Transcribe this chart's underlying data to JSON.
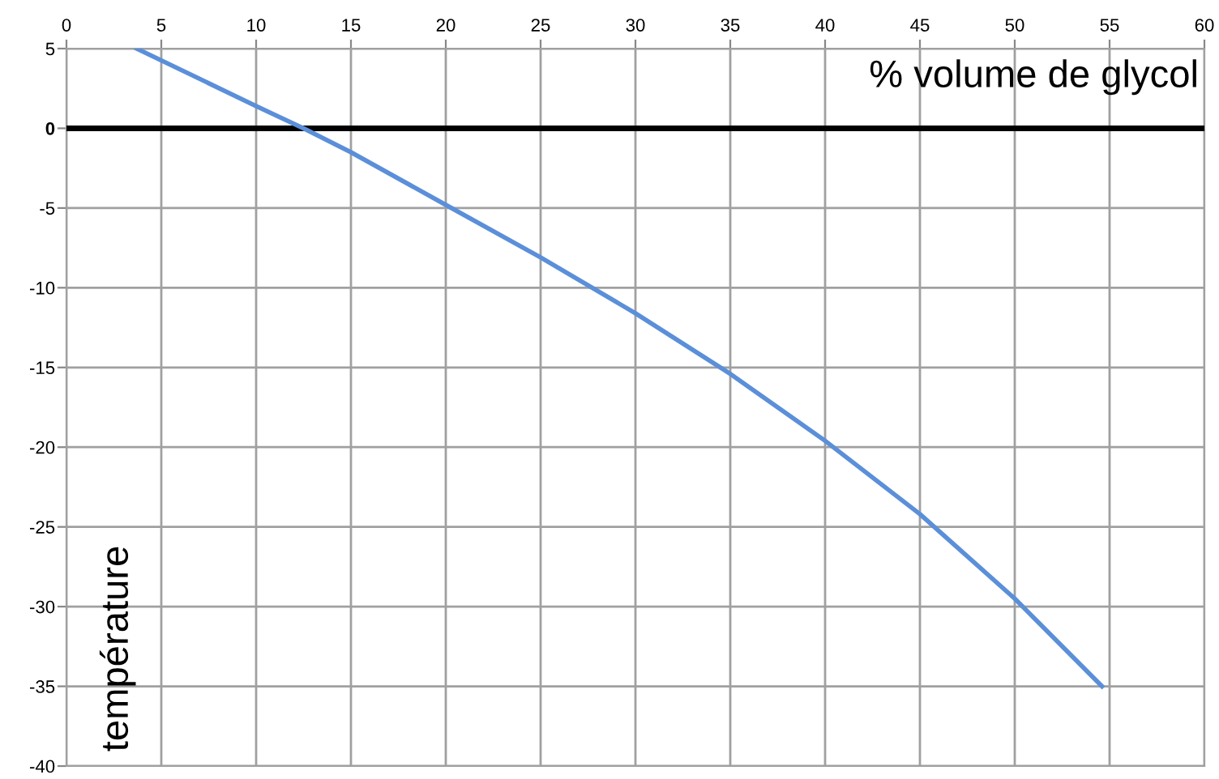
{
  "chart_data": {
    "type": "line",
    "xlabel": "% volume de glycol",
    "ylabel": "température",
    "x": [
      3.7,
      10,
      12.5,
      15,
      20,
      25,
      30,
      35,
      40,
      45,
      50,
      54.6
    ],
    "series": [
      {
        "color": "#5b8fd9",
        "values": [
          5,
          1.4,
          0,
          -1.5,
          -4.8,
          -8.1,
          -11.6,
          -15.4,
          -19.6,
          -24.2,
          -29.5,
          -35
        ]
      }
    ],
    "xlim": [
      0,
      60
    ],
    "xticks": [
      0,
      5,
      10,
      15,
      20,
      25,
      30,
      35,
      40,
      45,
      50,
      55,
      60
    ],
    "ylim": [
      -40,
      5
    ],
    "yticks": [
      5,
      0,
      -5,
      -10,
      -15,
      -20,
      -25,
      -30,
      -35,
      -40
    ],
    "ref_lines": [
      {
        "axis": "y",
        "value": 0,
        "color": "#000000"
      }
    ],
    "grid": true,
    "marker": "none",
    "line_style": "solid"
  }
}
